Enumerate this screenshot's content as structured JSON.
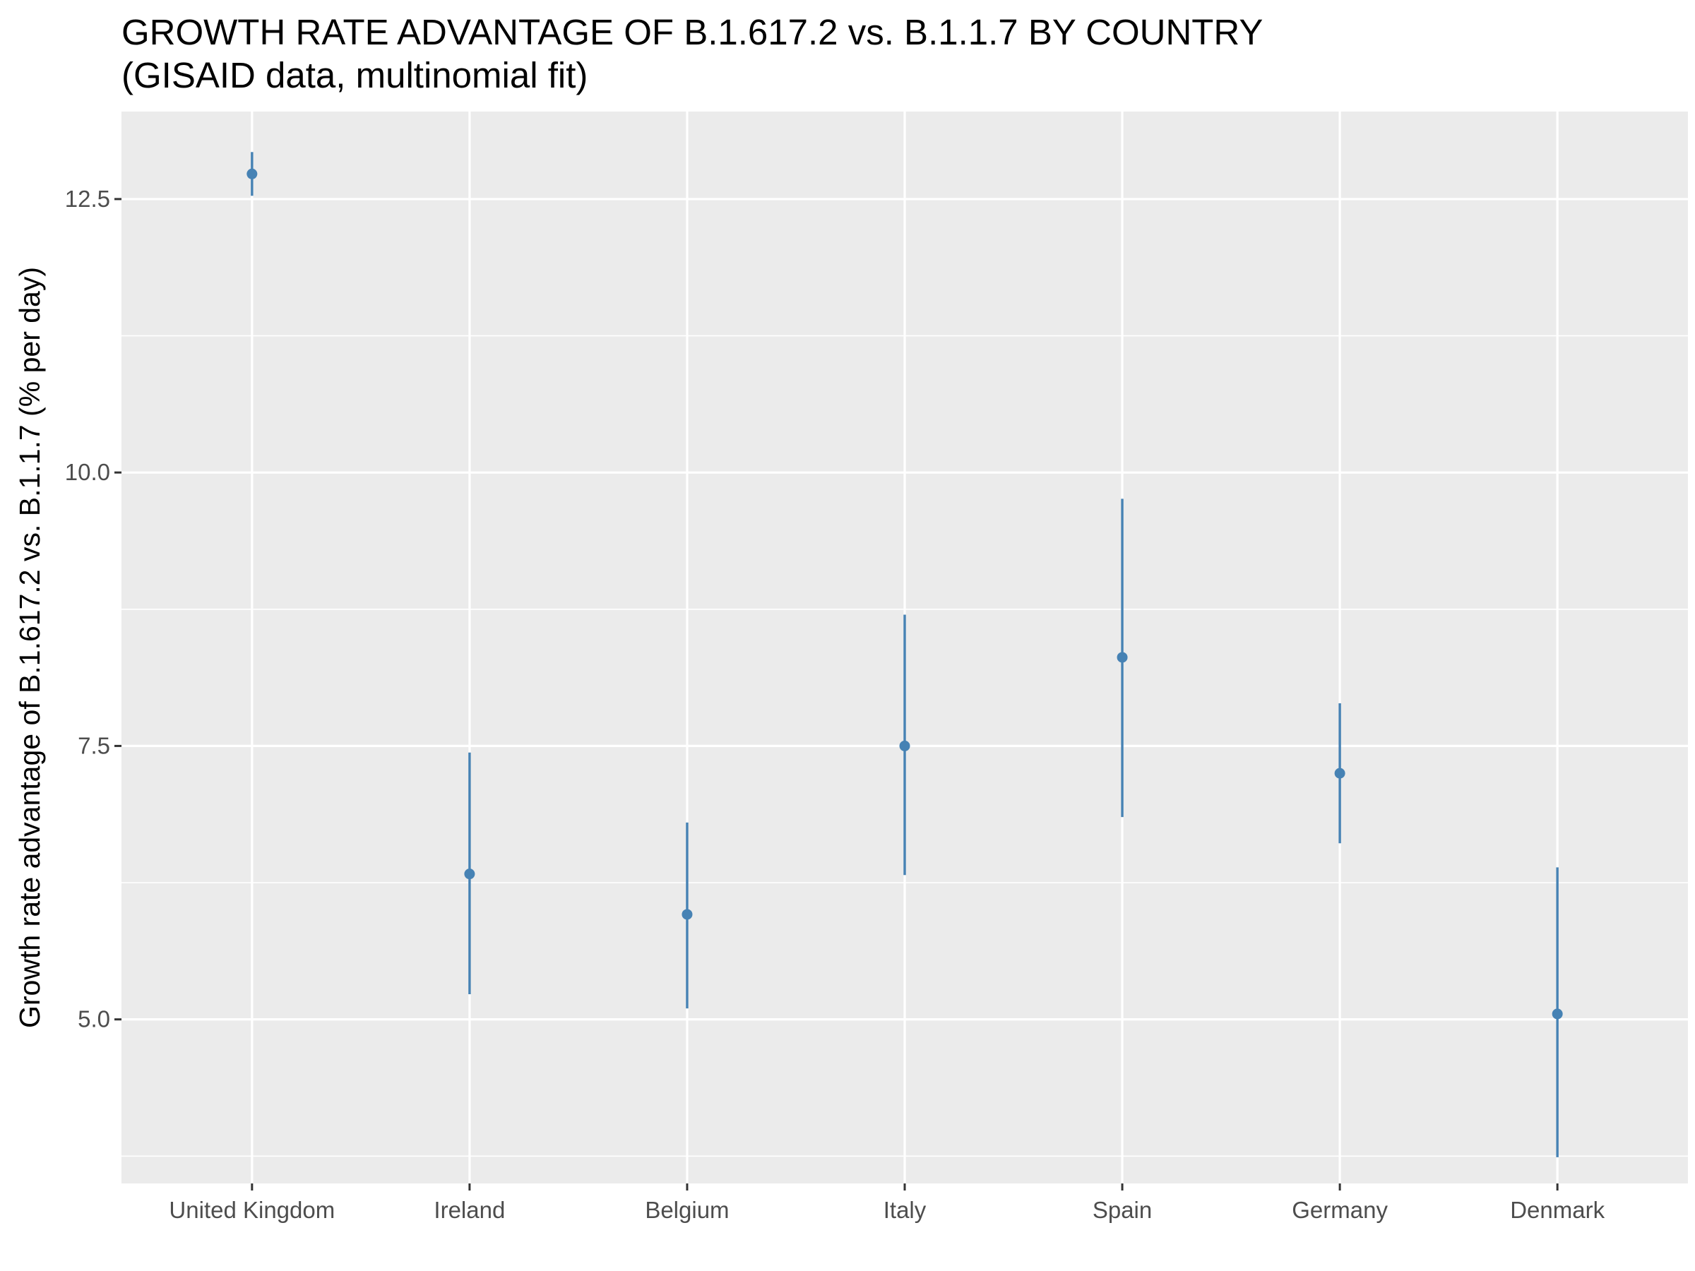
{
  "chart_data": {
    "type": "scatter",
    "title": "GROWTH RATE ADVANTAGE OF B.1.617.2 vs. B.1.1.7 BY COUNTRY",
    "subtitle": "(GISAID data, multinomial fit)",
    "xlabel": "",
    "ylabel": "Growth rate advantage of B.1.617.2 vs. B.1.1.7 (% per day)",
    "categories": [
      "United Kingdom",
      "Ireland",
      "Belgium",
      "Italy",
      "Spain",
      "Germany",
      "Denmark"
    ],
    "series": [
      {
        "values": [
          12.73,
          6.33,
          5.96,
          7.5,
          8.31,
          7.25,
          5.05
        ],
        "lower": [
          12.53,
          5.23,
          5.1,
          6.32,
          6.85,
          6.61,
          3.74
        ],
        "upper": [
          12.93,
          7.44,
          6.8,
          8.7,
          9.76,
          7.89,
          6.39
        ]
      }
    ],
    "ylim": [
      3.5,
      13.3
    ],
    "yticks": [
      "5.0",
      "7.5",
      "10.0",
      "12.5"
    ],
    "grid": true,
    "point_color": "#4682B4",
    "panel_background": "#EBEBEB",
    "grid_color": "#FFFFFF"
  }
}
